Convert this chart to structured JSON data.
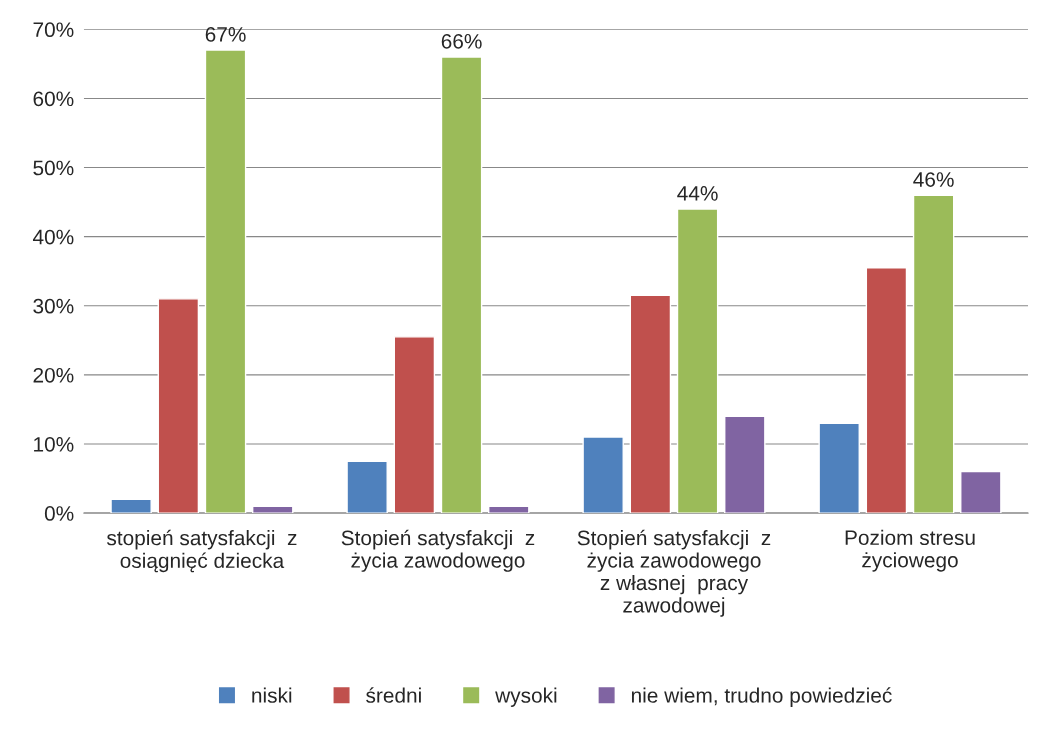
{
  "chart_data": {
    "type": "bar",
    "categories": [
      "stopień satysfakcji  z\nosiągnięć dziecka",
      "Stopień satysfakcji  z\nżycia zawodowego",
      "Stopień satysfakcji  z\nżycia zawodowego\nz własnej  pracy\nzawodowej",
      "Poziom stresu\nżyciowego"
    ],
    "series": [
      {
        "name": "niski",
        "color": "#4f81bd",
        "values": [
          2,
          7.5,
          11,
          13
        ]
      },
      {
        "name": "średni",
        "color": "#c0504d",
        "values": [
          31,
          25.5,
          31.5,
          35.5
        ]
      },
      {
        "name": "wysoki",
        "color": "#9bbb59",
        "values": [
          67,
          66,
          44,
          46
        ],
        "value_labels": [
          "67%",
          "66%",
          "44%",
          "46%"
        ]
      },
      {
        "name": "nie wiem, trudno powiedzieć",
        "color": "#8064a2",
        "values": [
          1,
          1,
          14,
          6
        ]
      }
    ],
    "ylim": [
      0,
      70
    ],
    "yticks": [
      {
        "value": 0,
        "label": "0%"
      },
      {
        "value": 10,
        "label": "10%"
      },
      {
        "value": 20,
        "label": "20%"
      },
      {
        "value": 30,
        "label": "30%"
      },
      {
        "value": 40,
        "label": "40%"
      },
      {
        "value": 50,
        "label": "50%"
      },
      {
        "value": 60,
        "label": "60%"
      },
      {
        "value": 70,
        "label": "70%"
      }
    ],
    "grid": "y",
    "legend": "bottom"
  }
}
